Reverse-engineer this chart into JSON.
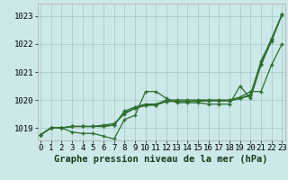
{
  "bg_color": "#cce8e8",
  "grid_color": "#aacccc",
  "line_color": "#2d6e2d",
  "title": "Graphe pression niveau de la mer (hPa)",
  "title_fontsize": 7.5,
  "tick_fontsize": 6.5,
  "yticks": [
    1019,
    1020,
    1021,
    1022,
    1023
  ],
  "xticks": [
    0,
    1,
    2,
    3,
    4,
    5,
    6,
    7,
    8,
    9,
    10,
    11,
    12,
    13,
    14,
    15,
    16,
    17,
    18,
    19,
    20,
    21,
    22,
    23
  ],
  "xlim": [
    -0.3,
    23.3
  ],
  "ylim": [
    1018.55,
    1023.45
  ],
  "series": [
    [
      1018.75,
      1019.0,
      1019.0,
      1018.85,
      1018.8,
      1018.8,
      1018.7,
      1018.6,
      1019.3,
      1019.45,
      1020.3,
      1020.3,
      1020.05,
      1019.9,
      1019.9,
      1019.9,
      1019.85,
      1019.85,
      1019.85,
      1020.5,
      1020.05,
      1021.25,
      1022.1,
      1023.05
    ],
    [
      1018.75,
      1019.0,
      1019.0,
      1019.05,
      1019.05,
      1019.05,
      1019.05,
      1019.1,
      1019.6,
      1019.75,
      1019.85,
      1019.85,
      1020.0,
      1020.0,
      1020.0,
      1020.0,
      1020.0,
      1020.0,
      1020.0,
      1020.1,
      1020.3,
      1020.3,
      1021.25,
      1022.0
    ],
    [
      1018.75,
      1019.0,
      1019.0,
      1019.05,
      1019.05,
      1019.05,
      1019.05,
      1019.1,
      1019.55,
      1019.7,
      1019.8,
      1019.82,
      1019.95,
      1019.95,
      1019.95,
      1019.95,
      1019.97,
      1019.97,
      1019.97,
      1020.05,
      1020.2,
      1021.3,
      1022.2,
      1023.05
    ],
    [
      1018.75,
      1019.0,
      1019.0,
      1019.05,
      1019.05,
      1019.05,
      1019.1,
      1019.15,
      1019.5,
      1019.7,
      1019.82,
      1019.82,
      1019.95,
      1019.95,
      1019.95,
      1019.97,
      1019.97,
      1019.97,
      1019.97,
      1020.05,
      1020.15,
      1021.4,
      1022.15,
      1023.05
    ]
  ]
}
